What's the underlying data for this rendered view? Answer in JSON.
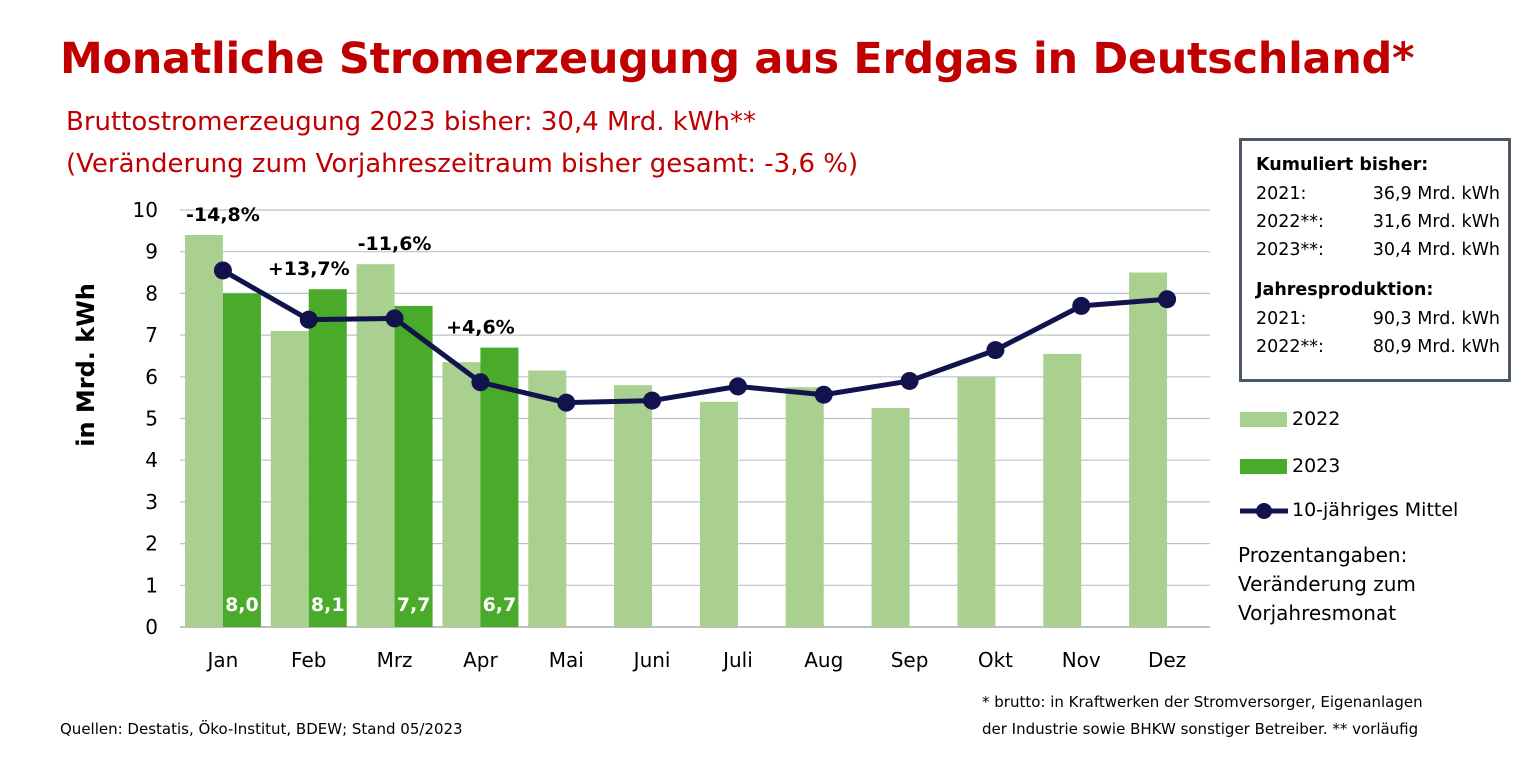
{
  "title": "Monatliche Stromerzeugung aus Erdgas in Deutschland*",
  "subtitle_line1": "Bruttostromerzeugung 2023 bisher: 30,4 Mrd. kWh**",
  "subtitle_line2": "(Veränderung zum Vorjahreszeitraum bisher gesamt: -3,6 %)",
  "colors": {
    "bar2022": "#a9d08e",
    "bar2023": "#4aaa2a",
    "line": "#12124d",
    "title": "#c00000",
    "grid": "#b7c4cc"
  },
  "chart_data": {
    "type": "bar",
    "categories": [
      "Jan",
      "Feb",
      "Mrz",
      "Apr",
      "Mai",
      "Juni",
      "Juli",
      "Aug",
      "Sep",
      "Okt",
      "Nov",
      "Dez"
    ],
    "ylabel": "in Mrd. kWh",
    "ylim": [
      0,
      10
    ],
    "yticks": [
      0,
      1,
      2,
      3,
      4,
      5,
      6,
      7,
      8,
      9,
      10
    ],
    "grid": true,
    "legend_position": "right",
    "series": [
      {
        "name": "2022",
        "type": "bar",
        "values": [
          9.4,
          7.1,
          8.7,
          6.35,
          6.15,
          5.8,
          5.4,
          5.75,
          5.25,
          6.0,
          6.55,
          8.5
        ]
      },
      {
        "name": "2023",
        "type": "bar",
        "values": [
          8.0,
          8.1,
          7.7,
          6.7,
          null,
          null,
          null,
          null,
          null,
          null,
          null,
          null
        ],
        "data_labels": [
          "8,0",
          "8,1",
          "7,7",
          "6,7"
        ]
      },
      {
        "name": "10-jähriges Mittel",
        "type": "line",
        "values": [
          8.55,
          7.37,
          7.4,
          5.87,
          5.38,
          5.43,
          5.77,
          5.57,
          5.9,
          6.64,
          7.7,
          7.86
        ]
      }
    ],
    "annotations": [
      {
        "category": "Jan",
        "text": "-14,8%"
      },
      {
        "category": "Feb",
        "text": "+13,7%"
      },
      {
        "category": "Mrz",
        "text": "-11,6%"
      },
      {
        "category": "Apr",
        "text": "+4,6%"
      }
    ]
  },
  "infobox": {
    "cumulative_title": "Kumuliert bisher:",
    "cumulative": [
      {
        "year": "2021:",
        "value": "36,9 Mrd. kWh"
      },
      {
        "year": "2022**:",
        "value": "31,6 Mrd. kWh"
      },
      {
        "year": "2023**:",
        "value": "30,4 Mrd. kWh"
      }
    ],
    "annual_title": "Jahresproduktion:",
    "annual": [
      {
        "year": "2021:",
        "value": "90,3 Mrd. kWh"
      },
      {
        "year": "2022**:",
        "value": "80,9 Mrd. kWh"
      }
    ]
  },
  "legend": {
    "item1": "2022",
    "item2": "2023",
    "item3": "10-jähriges Mittel"
  },
  "note": [
    "Prozentangaben:",
    "Veränderung zum",
    "Vorjahresmonat"
  ],
  "footnote_line1": "* brutto: in Kraftwerken der Stromversorger, Eigenanlagen",
  "footnote_line2": "der Industrie sowie BHKW sonstiger Betreiber. ** vorläufig",
  "source": "Quellen: Destatis, Öko-Institut, BDEW; Stand 05/2023"
}
